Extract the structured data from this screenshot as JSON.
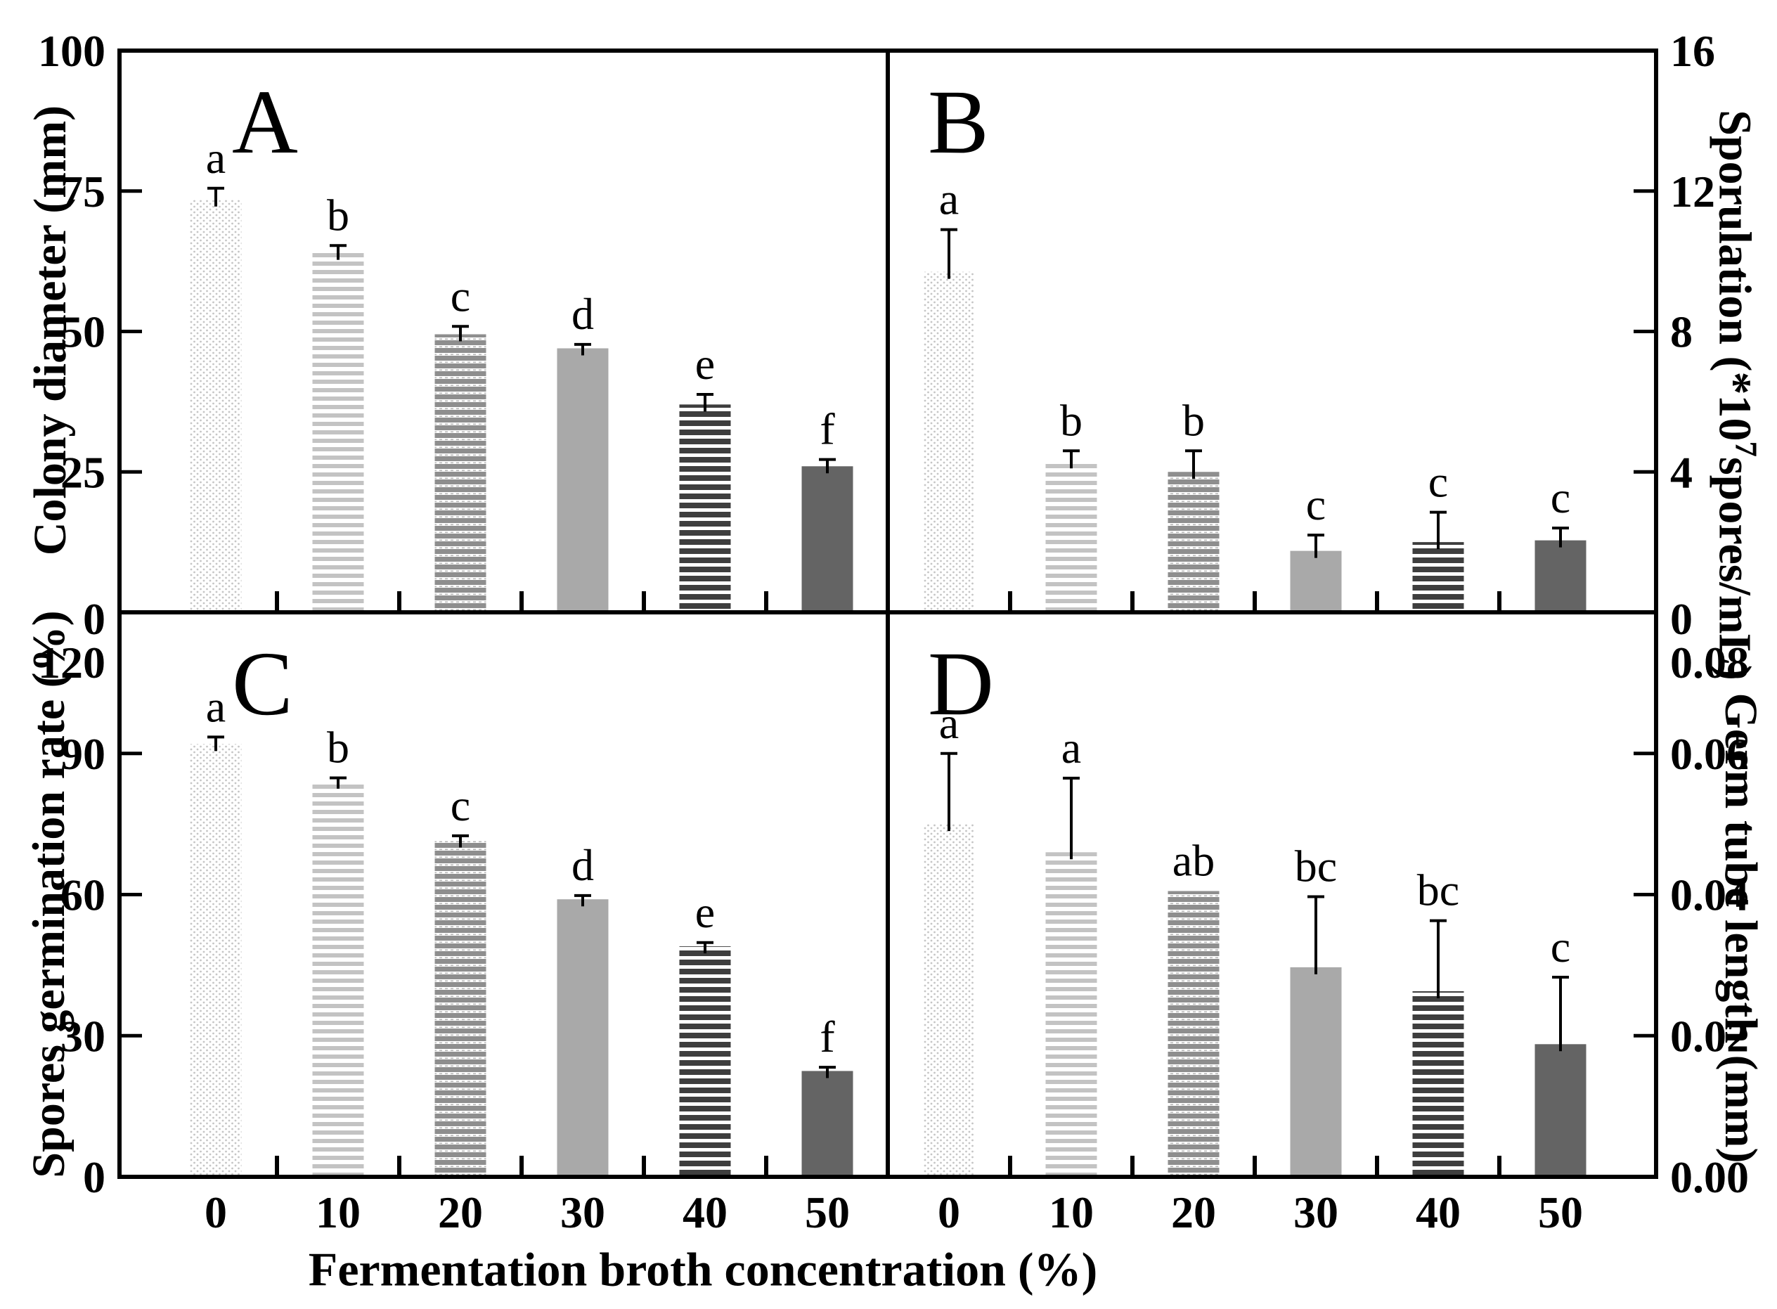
{
  "chart_data": {
    "type": "bar",
    "xlabel": "Fermentation broth concentration (%)",
    "categories": [
      "0",
      "10",
      "20",
      "30",
      "40",
      "50"
    ],
    "grid": "off",
    "legend": "none",
    "background_color": "#ffffff",
    "axis_color": "#000000",
    "bar_styles": [
      {
        "name": "dotted-light",
        "type": "dots",
        "fill": "#ffffff",
        "dot": "#c5c5c5"
      },
      {
        "name": "stripe-light-gray",
        "type": "hstripe",
        "stripe": "#c3c3c3",
        "gap": "#ffffff"
      },
      {
        "name": "stripe-medium-gray",
        "type": "hstripe-dashed",
        "stripe": "#8e8e8e",
        "gap": "#ffffff",
        "dash": "#b5b5b5"
      },
      {
        "name": "solid-gray",
        "type": "solid",
        "fill": "#a9a9a9"
      },
      {
        "name": "stripe-dark-gray",
        "type": "hstripe",
        "stripe": "#3e3e3e",
        "gap": "#ffffff"
      },
      {
        "name": "solid-dark-gray",
        "type": "solid",
        "fill": "#646464"
      }
    ],
    "panels": [
      {
        "id": "A",
        "position": "top-left",
        "axis_side": "left",
        "ylabel": "Colony diameter (mm)",
        "ylim": [
          0,
          100
        ],
        "ytick_labels": [
          "0",
          "25",
          "50",
          "75",
          "100"
        ],
        "ytick_values": [
          0,
          25,
          50,
          75,
          100
        ],
        "values": [
          73.5,
          64,
          49.5,
          47,
          37,
          26
        ],
        "errors": [
          2.0,
          1.3,
          1.4,
          0.7,
          1.8,
          1.2
        ],
        "sig_letters": [
          "a",
          "b",
          "c",
          "d",
          "e",
          "f"
        ]
      },
      {
        "id": "B",
        "position": "top-right",
        "axis_side": "right",
        "ylabel": "Sporulation (*10⁷spores/mL)",
        "ylabel_parts": [
          {
            "t": "Sporulation (*10"
          },
          {
            "t": "7",
            "sup": true
          },
          {
            "t": "spores/mL)"
          }
        ],
        "ylim": [
          0,
          16
        ],
        "ytick_labels": [
          "0",
          "4",
          "8",
          "12",
          "16"
        ],
        "ytick_values": [
          0,
          4,
          8,
          12,
          16
        ],
        "values": [
          9.7,
          4.3,
          4.0,
          1.75,
          2.0,
          2.05
        ],
        "errors": [
          1.2,
          0.3,
          0.6,
          0.45,
          0.85,
          0.35
        ],
        "sig_letters": [
          "a",
          "b",
          "b",
          "c",
          "c",
          "c"
        ]
      },
      {
        "id": "C",
        "position": "bottom-left",
        "axis_side": "left",
        "ylabel": "Spores germination rate (%)",
        "ylim": [
          0,
          120
        ],
        "ytick_labels": [
          "0",
          "30",
          "60",
          "90",
          "120"
        ],
        "ytick_values": [
          0,
          30,
          60,
          90,
          120
        ],
        "values": [
          92,
          84,
          71.5,
          59,
          49,
          22.5
        ],
        "errors": [
          1.5,
          0.8,
          1.0,
          0.8,
          0.8,
          0.8
        ],
        "sig_letters": [
          "a",
          "b",
          "c",
          "d",
          "e",
          "f"
        ]
      },
      {
        "id": "D",
        "position": "bottom-right",
        "axis_side": "right",
        "ylabel": "Germ tube length (mm)",
        "ylim": [
          0,
          0.08
        ],
        "ytick_labels": [
          "0.00",
          "0.02",
          "0.04",
          "0.06",
          "0.08"
        ],
        "ytick_values": [
          0,
          0.02,
          0.04,
          0.06,
          0.08
        ],
        "values": [
          0.05,
          0.046,
          0.0405,
          0.0297,
          0.0263,
          0.0188
        ],
        "errors": [
          0.01,
          0.0105,
          0,
          0.01,
          0.01,
          0.0095
        ],
        "sig_letters": [
          "a",
          "a",
          "ab",
          "bc",
          "bc",
          "c"
        ]
      }
    ]
  }
}
